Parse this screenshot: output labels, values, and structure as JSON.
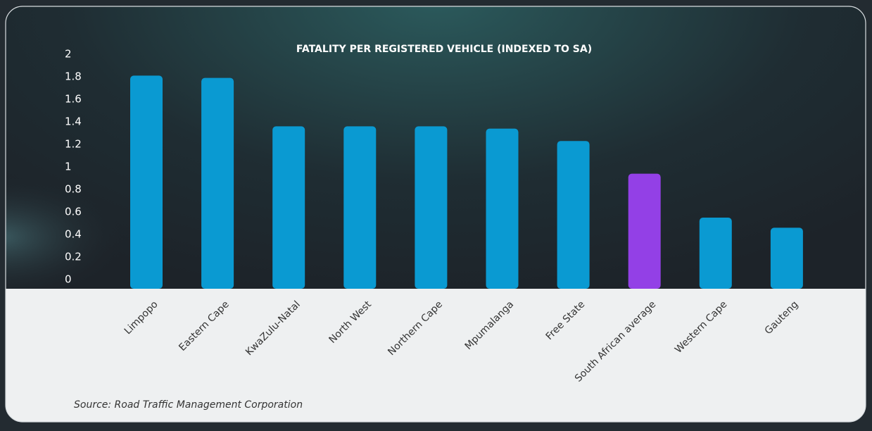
{
  "chart_data": {
    "type": "bar",
    "title": "FATALITY PER REGISTERED VEHICLE (INDEXED TO SA)",
    "categories": [
      "Limpopo",
      "Eastern Cape",
      "KwaZulu-Natal",
      "North West",
      "Northern Cape",
      "Mpumalanga",
      "Free State",
      "South African average",
      "Western Cape",
      "Gauteng"
    ],
    "values": [
      1.81,
      1.79,
      1.36,
      1.36,
      1.36,
      1.34,
      1.23,
      0.94,
      0.55,
      0.46
    ],
    "colors": [
      "#0a9ad2",
      "#0a9ad2",
      "#0a9ad2",
      "#0a9ad2",
      "#0a9ad2",
      "#0a9ad2",
      "#0a9ad2",
      "#9340e6",
      "#0a9ad2",
      "#0a9ad2"
    ],
    "ylim": [
      0,
      2
    ],
    "yticks": [
      0,
      0.2,
      0.4,
      0.6,
      0.8,
      1,
      1.2,
      1.4,
      1.6,
      1.8,
      2
    ],
    "grid": false,
    "source": "Source: Road Traffic Management Corporation"
  }
}
